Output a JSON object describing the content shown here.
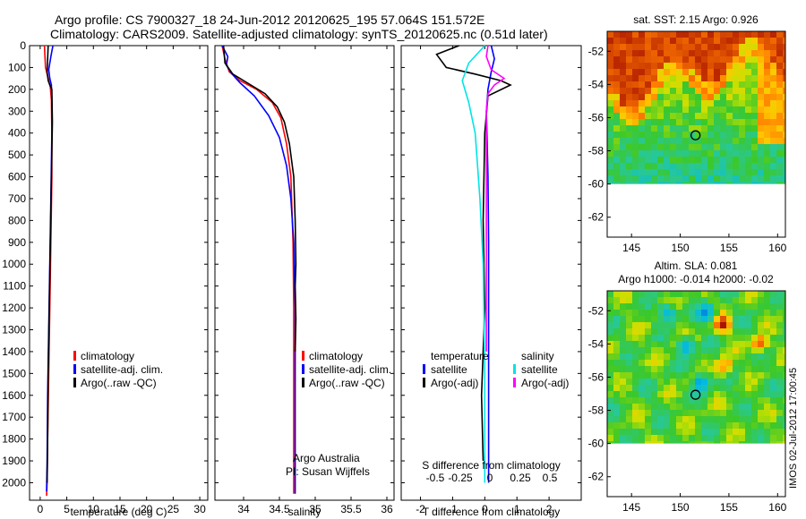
{
  "header": {
    "line1": "Argo profile: CS 7900327_18 24-Jun-2012 20120625_195 57.064S 151.572E",
    "line2": "Climatology: CARS2009. Satellite-adjusted climatology: synTS_20120625.nc (0.51d later)"
  },
  "side_stamp": "IMOS 02-Jul-2012 17:00:45",
  "colors": {
    "climatology": "#ff0000",
    "satellite": "#0000ff",
    "argo": "#000000",
    "salinity_satellite": "#00e5e5",
    "salinity_argo": "#ff00ff",
    "map_land": "#ffffff"
  },
  "chart_data": [
    {
      "type": "line",
      "id": "temperature",
      "xlabel": "temperature (deg C)",
      "ylabel": "",
      "xlim": [
        -2,
        31.5
      ],
      "ylim": [
        2080,
        0
      ],
      "xticks": [
        0,
        5,
        10,
        15,
        20,
        25,
        30
      ],
      "yticks": [
        0,
        100,
        200,
        300,
        400,
        500,
        600,
        700,
        800,
        900,
        1000,
        1100,
        1200,
        1300,
        1400,
        1500,
        1600,
        1700,
        1800,
        1900,
        2000
      ],
      "legend": [
        "climatology",
        "satellite-adj. clim.",
        "Argo(..raw -QC)"
      ],
      "legend_placement": "lower-center",
      "series": [
        {
          "name": "climatology",
          "color": "red",
          "x": [
            0.8,
            0.9,
            1.0,
            1.5,
            1.9,
            2.1,
            2.2,
            2.2,
            2.0,
            1.8,
            1.6,
            1.4,
            1.3,
            1.2
          ],
          "y": [
            0,
            50,
            100,
            150,
            190,
            250,
            400,
            600,
            900,
            1200,
            1500,
            1800,
            2000,
            2060
          ]
        },
        {
          "name": "satellite-adj. clim.",
          "color": "blue",
          "x": [
            2.4,
            2.0,
            1.6,
            1.8,
            2.1,
            2.2,
            2.2,
            2.0,
            1.8,
            1.6,
            1.4,
            1.3,
            1.2
          ],
          "y": [
            0,
            50,
            110,
            150,
            180,
            250,
            400,
            700,
            1000,
            1300,
            1600,
            1900,
            2040
          ]
        },
        {
          "name": "Argo(..raw -QC)",
          "color": "black",
          "x": [
            1.5,
            1.4,
            1.3,
            1.5,
            1.8,
            2.2,
            2.3,
            2.1,
            1.9,
            1.7,
            1.5,
            1.4,
            1.3
          ],
          "y": [
            0,
            60,
            120,
            160,
            180,
            200,
            350,
            600,
            900,
            1200,
            1500,
            1800,
            2000
          ]
        }
      ]
    },
    {
      "type": "line",
      "id": "salinity",
      "xlabel": "salinity",
      "ylabel": "",
      "xlim": [
        33.6,
        36.1
      ],
      "ylim": [
        2080,
        0
      ],
      "xticks": [
        34,
        34.5,
        35,
        35.5,
        36
      ],
      "legend": [
        "climatology",
        "satellite-adj. clim.",
        "Argo(..raw -QC)"
      ],
      "legend_placement": "lower-center",
      "annotation": [
        "Argo Australia",
        "PI: Susan Wijffels"
      ],
      "series": [
        {
          "name": "climatology",
          "color": "red",
          "x": [
            33.7,
            33.74,
            33.8,
            33.95,
            34.18,
            34.4,
            34.52,
            34.6,
            34.66,
            34.69,
            34.7,
            34.7,
            34.7
          ],
          "y": [
            0,
            60,
            120,
            160,
            200,
            260,
            330,
            450,
            600,
            900,
            1200,
            1600,
            2050
          ]
        },
        {
          "name": "satellite-adj. clim.",
          "color": "blue",
          "x": [
            33.7,
            33.78,
            33.76,
            33.84,
            33.95,
            34.15,
            34.35,
            34.5,
            34.6,
            34.66,
            34.7,
            34.72,
            34.72,
            34.72
          ],
          "y": [
            0,
            50,
            90,
            130,
            170,
            230,
            320,
            420,
            550,
            700,
            900,
            1200,
            1600,
            2050
          ]
        },
        {
          "name": "Argo(..raw -QC)",
          "color": "black",
          "x": [
            33.72,
            33.74,
            33.85,
            34.05,
            34.3,
            34.47,
            34.57,
            34.64,
            34.7,
            34.72,
            34.73,
            34.72,
            34.73,
            34.72
          ],
          "y": [
            0,
            80,
            130,
            170,
            220,
            280,
            350,
            450,
            600,
            800,
            1000,
            1100,
            1250,
            1400
          ]
        }
      ]
    },
    {
      "type": "line",
      "id": "difference",
      "xlabel": "T difference from climatology",
      "xlabel2": "S difference from climatology",
      "ylabel": "",
      "xlim": [
        -2.6,
        3.0
      ],
      "ylim": [
        2080,
        0
      ],
      "xticks": [
        -2,
        -1,
        0,
        1,
        2
      ],
      "xticklabels2": [
        "-0.5",
        "-0.25",
        "0",
        "0.25",
        "0.5"
      ],
      "legend_titles": [
        "temperature",
        "salinity"
      ],
      "legend": [
        "satellite",
        "Argo(-adj)",
        "satellite",
        "Argo(-adj)"
      ],
      "legend_placement": "lower-center",
      "series": [
        {
          "name": "satellite",
          "group": "temperature",
          "color": "blue",
          "x": [
            0.2,
            0.3,
            0.2,
            0.1,
            0.05,
            0.1,
            0.12,
            0.12,
            0.12,
            0.12
          ],
          "y": [
            0,
            60,
            120,
            200,
            300,
            600,
            900,
            1200,
            1600,
            2000
          ]
        },
        {
          "name": "Argo(-adj)",
          "group": "temperature",
          "color": "black",
          "x": [
            -0.8,
            -1.5,
            -1.2,
            -0.3,
            0.5,
            0.8,
            0.1,
            0.0,
            -0.05,
            0.0,
            -0.1,
            -0.05
          ],
          "y": [
            0,
            40,
            100,
            130,
            160,
            180,
            230,
            400,
            800,
            1200,
            1600,
            1900
          ]
        },
        {
          "name": "satellite",
          "group": "salinity",
          "color": "cyan",
          "x": [
            0.0,
            -0.5,
            -0.7,
            -0.5,
            -0.3,
            -0.15,
            -0.05,
            0.0,
            0.0
          ],
          "y": [
            0,
            80,
            160,
            260,
            400,
            700,
            1000,
            1500,
            2000
          ]
        },
        {
          "name": "Argo(-adj)",
          "group": "salinity",
          "color": "magenta",
          "x": [
            0.1,
            0.05,
            0.2,
            0.6,
            0.3,
            0.1,
            0.05,
            0.05,
            0.05,
            0.05
          ],
          "y": [
            0,
            50,
            110,
            150,
            180,
            220,
            300,
            600,
            1000,
            1400
          ]
        }
      ]
    },
    {
      "type": "heatmap",
      "id": "sst_map",
      "title": "sat. SST: 2.15 Argo: 0.926",
      "xlim": [
        142.5,
        160.8
      ],
      "ylim": [
        -63.2,
        -50.8
      ],
      "xticks": [
        145,
        150,
        155,
        160
      ],
      "yticks": [
        -52,
        -54,
        -56,
        -58,
        -60,
        -62
      ],
      "data_extent_lat": [
        -60,
        -50.8
      ],
      "marker": {
        "lon": 151.572,
        "lat": -57.064
      }
    },
    {
      "type": "heatmap",
      "id": "sla_map",
      "title": "Altim. SLA: 0.081",
      "subtitle": "Argo h1000: -0.014 h2000: -0.02",
      "xlim": [
        142.5,
        160.8
      ],
      "ylim": [
        -63.2,
        -50.8
      ],
      "xticks": [
        145,
        150,
        155,
        160
      ],
      "yticks": [
        -52,
        -54,
        -56,
        -58,
        -60,
        -62
      ],
      "data_extent_lat": [
        -60,
        -50.8
      ],
      "marker": {
        "lon": 151.572,
        "lat": -57.064
      }
    }
  ]
}
